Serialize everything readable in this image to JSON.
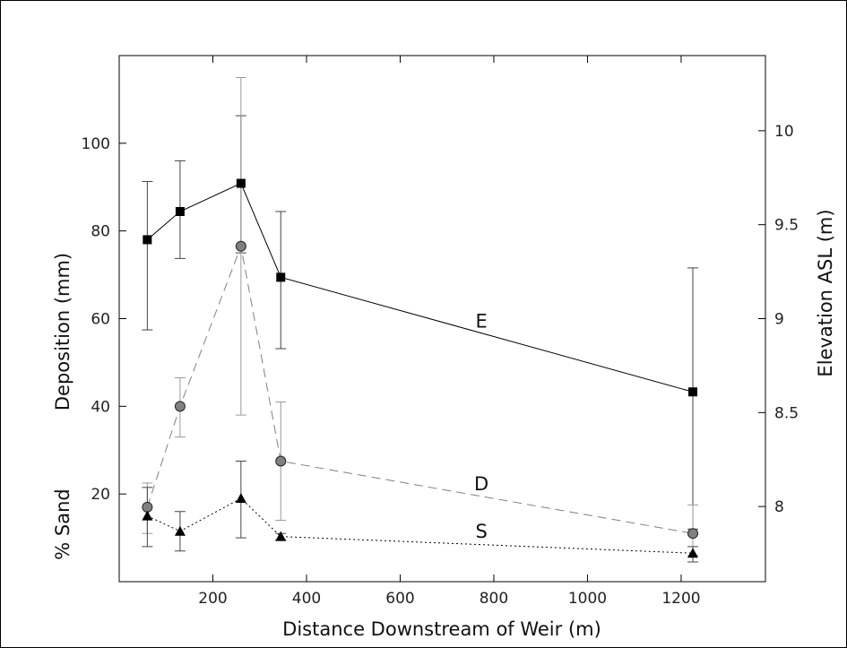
{
  "chart_data": {
    "type": "line",
    "xlabel": "Distance Downstream of Weir (m)",
    "ylabel_left": "Deposition (mm)",
    "ylabel_left_secondary": "% Sand",
    "ylabel_right": "Elevation ASL (m)",
    "xlim": [
      0,
      1380
    ],
    "ylim_left": [
      0,
      120
    ],
    "ylim_right": [
      7.6,
      10.4
    ],
    "x_ticks": [
      200,
      400,
      600,
      800,
      1000,
      1200
    ],
    "x_tick_labels": [
      "200",
      "400",
      "600",
      "800",
      "1000",
      "1200"
    ],
    "y_left_ticks": [
      20,
      40,
      60,
      80,
      100
    ],
    "y_left_tick_labels": [
      "20",
      "40",
      "60",
      "80",
      "100"
    ],
    "y_right_ticks": [
      8,
      8.5,
      9,
      9.5,
      10
    ],
    "y_right_tick_labels": [
      "8",
      "8.5",
      "9",
      "9.5",
      "10"
    ],
    "grid": false,
    "series": [
      {
        "name": "E",
        "axis": "right",
        "marker": "square",
        "line": "solid",
        "color": "#000000",
        "x": [
          60,
          130,
          260,
          345,
          1225
        ],
        "y": [
          9.42,
          9.57,
          9.72,
          9.22,
          8.61
        ],
        "err_low": [
          8.94,
          9.32,
          9.35,
          8.84,
          7.88
        ],
        "err_high": [
          9.73,
          9.84,
          10.08,
          9.57,
          9.27
        ]
      },
      {
        "name": "D",
        "axis": "left",
        "marker": "circle",
        "line": "dashed",
        "color": "#808080",
        "x": [
          60,
          130,
          260,
          345,
          1225
        ],
        "y": [
          17,
          40,
          76.5,
          27.5,
          11
        ],
        "err_low": [
          11,
          33,
          38,
          14,
          6
        ],
        "err_high": [
          22.5,
          46.5,
          115,
          41,
          17.5
        ]
      },
      {
        "name": "S",
        "axis": "left",
        "marker": "triangle",
        "line": "dotted",
        "color": "#000000",
        "x": [
          60,
          130,
          260,
          345,
          1225
        ],
        "y": [
          15,
          11.5,
          19,
          10.3,
          6.5
        ],
        "err_low": [
          8,
          7,
          10,
          9.5,
          4.5
        ],
        "err_high": [
          21.5,
          16,
          27.5,
          11,
          8
        ]
      }
    ]
  }
}
